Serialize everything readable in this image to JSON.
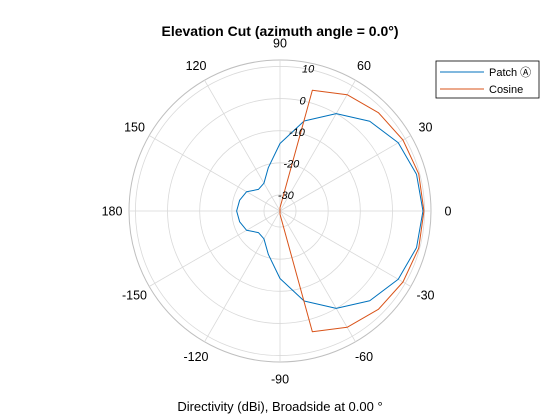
{
  "chart_data": {
    "type": "polar-line",
    "title": "Elevation Cut (azimuth angle = 0.0°)",
    "xlabel": "Directivity (dBi), Broadside at 0.00 °",
    "angle_ticks": [
      "0",
      "30",
      "60",
      "90",
      "120",
      "150",
      "180",
      "-150",
      "-120",
      "-90",
      "-60",
      "-30"
    ],
    "angle_tick_values": [
      0,
      30,
      60,
      90,
      120,
      150,
      180,
      -150,
      -120,
      -90,
      -60,
      -30
    ],
    "radial_ticks": [
      "-30",
      "-20",
      "-10",
      "0",
      "10"
    ],
    "radial_tick_values": [
      -30,
      -20,
      -10,
      0,
      10
    ],
    "rlim": [
      -35,
      12
    ],
    "angle_direction": "counterclockwise, 0 at right",
    "grid": true,
    "legend_position": "top-right",
    "series": [
      {
        "name": "Patch Ⓐ",
        "color": "#0072BD",
        "angles_deg": [
          0,
          15,
          30,
          45,
          60,
          75,
          90,
          105,
          120,
          135,
          150,
          165,
          180,
          195,
          210,
          225,
          240,
          255,
          270,
          285,
          300,
          315,
          330,
          345,
          360
        ],
        "values_dbi": [
          9.5,
          9.0,
          7.5,
          4.5,
          0,
          -6,
          -14,
          -21,
          -25,
          -25.5,
          -23,
          -22,
          -21.5,
          -22,
          -23,
          -25.5,
          -25,
          -21,
          -14,
          -6,
          0,
          4.5,
          7.5,
          9.0,
          9.5
        ]
      },
      {
        "name": "Cosine",
        "color": "#D95319",
        "angles_deg": [
          0,
          15,
          30,
          45,
          60,
          75,
          90,
          270,
          285,
          300,
          315,
          330,
          345,
          360
        ],
        "values_dbi": [
          9.8,
          9.7,
          9.2,
          8.3,
          6.8,
          3.9,
          -34,
          -34,
          3.9,
          6.8,
          8.3,
          9.2,
          9.7,
          9.8
        ]
      }
    ]
  }
}
